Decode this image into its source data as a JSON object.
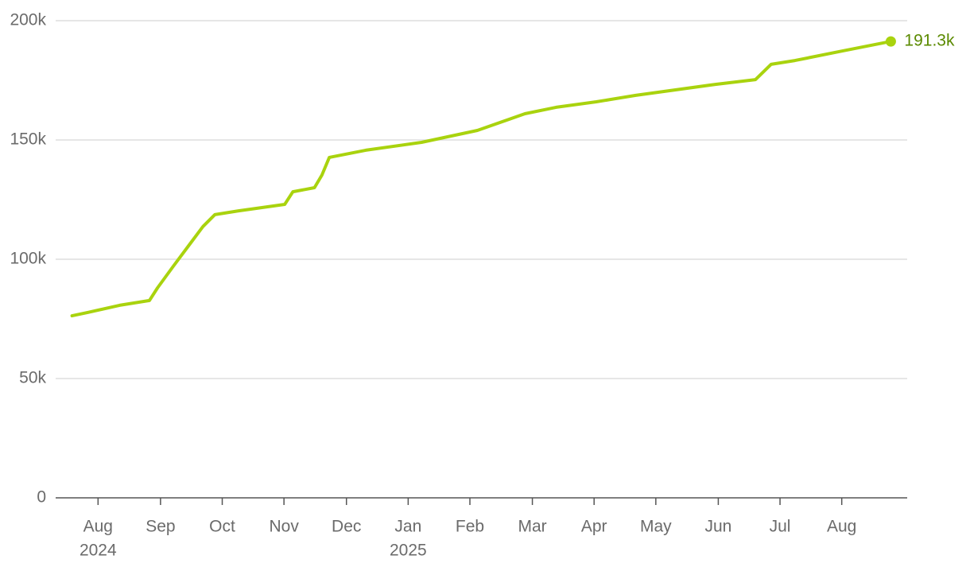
{
  "chart_data": {
    "type": "line",
    "x": [
      2024.548,
      2024.569,
      2024.612,
      2024.652,
      2024.663,
      2024.684,
      2024.708,
      2024.724,
      2024.74,
      2024.772,
      2024.834,
      2024.845,
      2024.874,
      2024.884,
      2024.894,
      2024.943,
      2025.018,
      2025.093,
      2025.157,
      2025.199,
      2025.253,
      2025.306,
      2025.413,
      2025.467,
      2025.488,
      2025.52,
      2025.584,
      2025.649
    ],
    "series": [
      {
        "color": "#a9d30e",
        "values": [
          76300,
          77700,
          80700,
          82700,
          88000,
          97000,
          107000,
          113700,
          118700,
          120300,
          123000,
          128300,
          130000,
          135300,
          142700,
          145700,
          149000,
          154000,
          161000,
          163700,
          166000,
          168700,
          173300,
          175300,
          181700,
          183300,
          187300,
          191300
        ],
        "last_value_label": "191.3k"
      }
    ],
    "xlim": [
      2024.526,
      2025.671
    ],
    "xticks": [
      {
        "value": 2024.583,
        "label": "Aug"
      },
      {
        "value": 2024.667,
        "label": "Sep"
      },
      {
        "value": 2024.75,
        "label": "Oct"
      },
      {
        "value": 2024.833,
        "label": "Nov"
      },
      {
        "value": 2024.917,
        "label": "Dec"
      },
      {
        "value": 2025.0,
        "label": "Jan"
      },
      {
        "value": 2025.083,
        "label": "Feb"
      },
      {
        "value": 2025.167,
        "label": "Mar"
      },
      {
        "value": 2025.25,
        "label": "Apr"
      },
      {
        "value": 2025.333,
        "label": "May"
      },
      {
        "value": 2025.417,
        "label": "Jun"
      },
      {
        "value": 2025.5,
        "label": "Jul"
      },
      {
        "value": 2025.583,
        "label": "Aug"
      }
    ],
    "x_year_labels": [
      {
        "value": 2024.583,
        "label": "2024"
      },
      {
        "value": 2025.0,
        "label": "2025"
      }
    ],
    "ylim": [
      0,
      200000
    ],
    "yticks": [
      0,
      {
        "value": 50000,
        "label": "50k"
      },
      {
        "value": 100000,
        "label": "100k"
      },
      {
        "value": 150000,
        "label": "150k"
      },
      {
        "value": 200000,
        "label": "200k"
      }
    ],
    "grid": true
  }
}
